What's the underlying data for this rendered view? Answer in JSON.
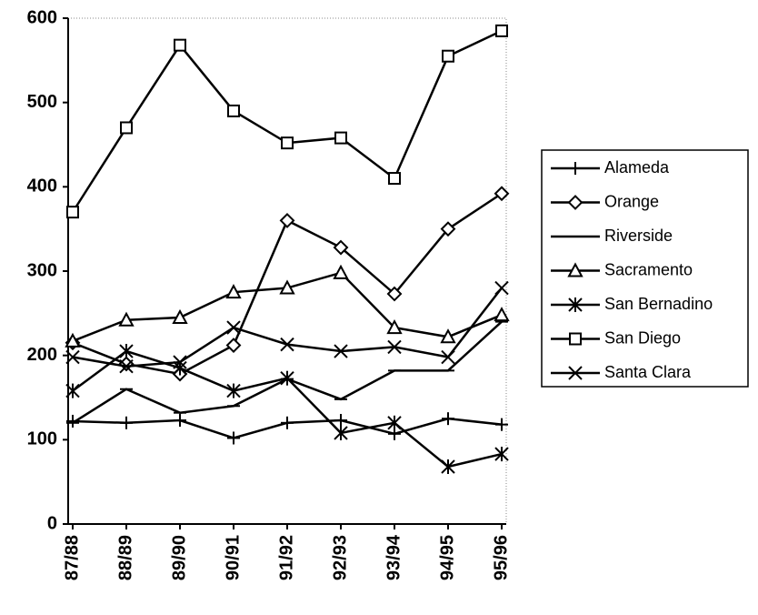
{
  "chart_data": {
    "type": "line",
    "categories": [
      "87/88",
      "88/89",
      "89/90",
      "90/91",
      "91/92",
      "92/93",
      "93/94",
      "94/95",
      "95/96"
    ],
    "ylim": [
      0,
      600
    ],
    "yticks": [
      0,
      100,
      200,
      300,
      400,
      500,
      600
    ],
    "series": [
      {
        "name": "Alameda",
        "color": "#000000",
        "marker": "plus",
        "values": [
          122,
          120,
          123,
          102,
          120,
          123,
          107,
          125,
          118
        ]
      },
      {
        "name": "Orange",
        "color": "#000000",
        "marker": "diamond",
        "values": [
          215,
          190,
          178,
          212,
          360,
          328,
          273,
          350,
          392
        ]
      },
      {
        "name": "Riverside",
        "color": "#000000",
        "marker": "dash",
        "values": [
          120,
          160,
          132,
          140,
          172,
          148,
          182,
          182,
          240
        ]
      },
      {
        "name": "Sacramento",
        "color": "#000000",
        "marker": "triangle",
        "values": [
          217,
          242,
          245,
          275,
          280,
          298,
          233,
          222,
          248
        ]
      },
      {
        "name": "San Bernadino",
        "color": "#000000",
        "marker": "asterisk",
        "values": [
          158,
          205,
          185,
          158,
          173,
          108,
          120,
          68,
          83
        ]
      },
      {
        "name": "San Diego",
        "color": "#000000",
        "marker": "square",
        "values": [
          370,
          470,
          568,
          490,
          452,
          458,
          410,
          555,
          585
        ]
      },
      {
        "name": "Santa Clara",
        "color": "#000000",
        "marker": "x",
        "values": [
          198,
          187,
          192,
          233,
          213,
          205,
          210,
          198,
          280
        ]
      }
    ]
  }
}
